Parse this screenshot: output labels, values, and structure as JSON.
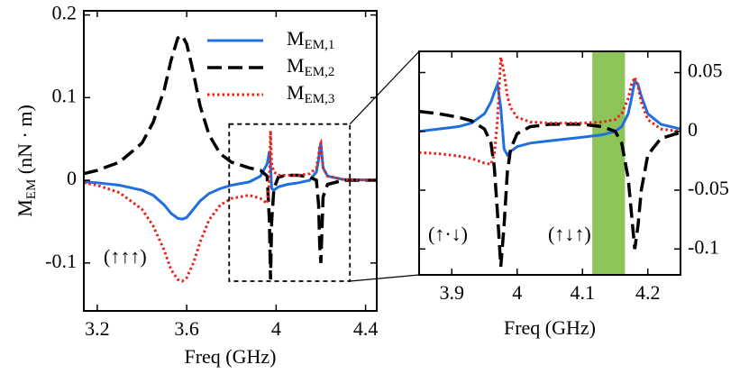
{
  "chart_data": [
    {
      "type": "line",
      "x_label": "Freq (GHz)",
      "y_label": [
        "M",
        "EM",
        " (nN · m)"
      ],
      "annotations": [
        "(↑↑↑)"
      ],
      "legend": "upper right",
      "xlim": [
        3.14,
        4.45
      ],
      "xticks": [
        3.2,
        3.6,
        4,
        4.4
      ],
      "ylim": [
        -0.158,
        0.205
      ],
      "yticks": [
        0.2,
        0.1,
        0,
        -0.1
      ],
      "zoom_box": [
        3.79,
        4.33
      ],
      "x": [
        3.14,
        3.2,
        3.3,
        3.4,
        3.45,
        3.5,
        3.53,
        3.56,
        3.58,
        3.6,
        3.63,
        3.66,
        3.7,
        3.75,
        3.8,
        3.88,
        3.93,
        3.96,
        3.97,
        3.975,
        3.98,
        3.99,
        4.01,
        4.05,
        4.1,
        4.15,
        4.18,
        4.19,
        4.195,
        4.2,
        4.205,
        4.21,
        4.23,
        4.3,
        4.45
      ],
      "series": [
        {
          "name": "M",
          "subscript": "EM,1",
          "color": "#1f6fe0",
          "style": "solid",
          "values": [
            -0.002,
            -0.003,
            -0.006,
            -0.012,
            -0.018,
            -0.03,
            -0.04,
            -0.046,
            -0.047,
            -0.045,
            -0.035,
            -0.025,
            -0.016,
            -0.01,
            -0.006,
            -0.002,
            0.005,
            0.02,
            0.035,
            0.02,
            -0.01,
            -0.012,
            -0.008,
            -0.005,
            -0.003,
            0.0,
            0.01,
            0.025,
            0.038,
            0.045,
            0.03,
            0.015,
            0.005,
            0.001,
            0.0
          ]
        },
        {
          "name": "M",
          "subscript": "EM,2",
          "color": "#000000",
          "style": "dashed",
          "values": [
            0.008,
            0.012,
            0.022,
            0.045,
            0.07,
            0.11,
            0.145,
            0.172,
            0.175,
            0.165,
            0.13,
            0.09,
            0.055,
            0.032,
            0.022,
            0.015,
            0.012,
            0.005,
            -0.05,
            -0.12,
            -0.05,
            -0.01,
            0.004,
            0.006,
            0.006,
            0.004,
            0.0,
            -0.03,
            -0.08,
            -0.1,
            -0.06,
            -0.02,
            -0.005,
            0.0,
            0.0
          ]
        },
        {
          "name": "M",
          "subscript": "EM,3",
          "color": "#e8201a",
          "style": "dotted",
          "values": [
            -0.003,
            -0.006,
            -0.015,
            -0.035,
            -0.055,
            -0.085,
            -0.108,
            -0.12,
            -0.122,
            -0.118,
            -0.1,
            -0.075,
            -0.048,
            -0.03,
            -0.022,
            -0.018,
            -0.022,
            -0.028,
            0.0,
            0.06,
            0.02,
            0.01,
            0.006,
            0.006,
            0.006,
            0.008,
            0.015,
            0.03,
            0.042,
            0.045,
            0.03,
            0.015,
            0.005,
            0.001,
            0.0
          ]
        }
      ]
    },
    {
      "type": "line",
      "x_label": "Freq (GHz)",
      "annotations": [
        "(↑·↓)",
        "(↑↓↑)"
      ],
      "xlim": [
        3.85,
        4.25
      ],
      "xticks": [
        3.9,
        4,
        4.1,
        4.2
      ],
      "ylim": [
        -0.122,
        0.068
      ],
      "yticks": [
        0.05,
        0,
        -0.05,
        -0.1
      ],
      "highlight": {
        "x": [
          4.115,
          4.165
        ],
        "color": "#8dc45a"
      },
      "x": [
        3.85,
        3.88,
        3.91,
        3.93,
        3.95,
        3.96,
        3.965,
        3.97,
        3.975,
        3.98,
        3.985,
        3.99,
        4.0,
        4.02,
        4.05,
        4.1,
        4.13,
        4.15,
        4.16,
        4.17,
        4.175,
        4.18,
        4.185,
        4.19,
        4.2,
        4.22,
        4.25
      ],
      "series": [
        {
          "color": "#1f6fe0",
          "style": "solid",
          "values": [
            0.0,
            0.002,
            0.004,
            0.007,
            0.015,
            0.025,
            0.033,
            0.04,
            0.02,
            -0.015,
            -0.02,
            -0.017,
            -0.013,
            -0.01,
            -0.008,
            -0.005,
            -0.003,
            0.0,
            0.004,
            0.015,
            0.028,
            0.043,
            0.04,
            0.03,
            0.015,
            0.006,
            0.002
          ]
        },
        {
          "color": "#000000",
          "style": "dashed",
          "values": [
            0.017,
            0.015,
            0.012,
            0.009,
            0.002,
            -0.01,
            -0.03,
            -0.07,
            -0.115,
            -0.08,
            -0.035,
            -0.015,
            -0.002,
            0.004,
            0.006,
            0.006,
            0.004,
            0.0,
            -0.01,
            -0.04,
            -0.07,
            -0.1,
            -0.08,
            -0.05,
            -0.02,
            -0.006,
            -0.001
          ]
        },
        {
          "color": "#e8201a",
          "style": "dotted",
          "values": [
            -0.018,
            -0.019,
            -0.021,
            -0.023,
            -0.027,
            -0.028,
            -0.02,
            0.01,
            0.063,
            0.05,
            0.03,
            0.02,
            0.012,
            0.008,
            0.007,
            0.007,
            0.008,
            0.01,
            0.015,
            0.028,
            0.04,
            0.046,
            0.038,
            0.025,
            0.01,
            0.002,
            0.0
          ]
        }
      ]
    }
  ]
}
